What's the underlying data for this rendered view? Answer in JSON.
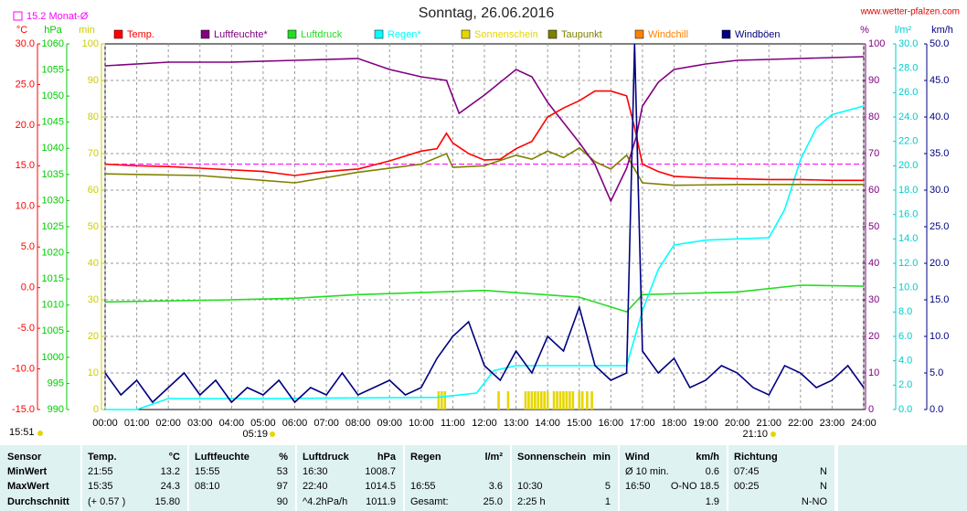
{
  "chart_data": {
    "type": "line",
    "title": "Sonntag, 26.06.2016",
    "source": "www.wetter-pfalzen.com",
    "updated": "15:51",
    "sunrise": "05:19",
    "sunset": "21:10",
    "monthly_mean": {
      "label": "15.2 Monat-Ø",
      "value": 15.2,
      "color": "#ff00ff"
    },
    "grid": true,
    "xlim": [
      0,
      24
    ],
    "xticks": [
      {
        "value": 0,
        "label": "00:00"
      },
      {
        "value": 1,
        "label": "01:00"
      },
      {
        "value": 2,
        "label": "02:00"
      },
      {
        "value": 3,
        "label": "03:00"
      },
      {
        "value": 4,
        "label": "04:00"
      },
      {
        "value": 5,
        "label": "05:00"
      },
      {
        "value": 6,
        "label": "06:00"
      },
      {
        "value": 7,
        "label": "07:00"
      },
      {
        "value": 8,
        "label": "08:00"
      },
      {
        "value": 9,
        "label": "09:00"
      },
      {
        "value": 10,
        "label": "10:00"
      },
      {
        "value": 11,
        "label": "11:00"
      },
      {
        "value": 12,
        "label": "12:00"
      },
      {
        "value": 13,
        "label": "13:00"
      },
      {
        "value": 14,
        "label": "14:00"
      },
      {
        "value": 15,
        "label": "15:00"
      },
      {
        "value": 16,
        "label": "16:00"
      },
      {
        "value": 17,
        "label": "17:00"
      },
      {
        "value": 18,
        "label": "18:00"
      },
      {
        "value": 19,
        "label": "19:00"
      },
      {
        "value": 20,
        "label": "20:00"
      },
      {
        "value": 21,
        "label": "21:00"
      },
      {
        "value": 22,
        "label": "22:00"
      },
      {
        "value": 23,
        "label": "23:00"
      },
      {
        "value": 24,
        "label": "24:00"
      }
    ],
    "axes": [
      {
        "unit": "°C",
        "color": "#ff0000",
        "side": "left",
        "ylim": [
          -15,
          30
        ],
        "yticks": [
          {
            "value": -15,
            "label": "-15.0"
          },
          {
            "value": -10,
            "label": "-10.0"
          },
          {
            "value": -5,
            "label": "-5.0"
          },
          {
            "value": 0,
            "label": "0.0"
          },
          {
            "value": 5,
            "label": "5.0"
          },
          {
            "value": 10,
            "label": "10.0"
          },
          {
            "value": 15,
            "label": "15.0"
          },
          {
            "value": 20,
            "label": "20.0"
          },
          {
            "value": 25,
            "label": "25.0"
          },
          {
            "value": 30,
            "label": "30.0"
          }
        ]
      },
      {
        "unit": "hPa",
        "color": "#00cc00",
        "side": "left",
        "ylim": [
          990,
          1060
        ],
        "yticks": [
          990,
          995,
          1000,
          1005,
          1010,
          1015,
          1020,
          1025,
          1030,
          1035,
          1040,
          1045,
          1050,
          1055,
          1060
        ]
      },
      {
        "unit": "min",
        "color": "#cccc00",
        "side": "left",
        "ylim": [
          0,
          100
        ],
        "yticks": [
          0,
          10,
          20,
          30,
          40,
          50,
          60,
          70,
          80,
          90,
          100
        ]
      },
      {
        "unit": "%",
        "color": "#800080",
        "side": "right",
        "ylim": [
          0,
          100
        ],
        "yticks": [
          0,
          10,
          20,
          30,
          40,
          50,
          60,
          70,
          80,
          90,
          100
        ]
      },
      {
        "unit": "l/m²",
        "color": "#00cccc",
        "side": "right",
        "ylim": [
          0,
          30
        ],
        "yticks": [
          {
            "value": 0,
            "label": "0.0"
          },
          {
            "value": 2,
            "label": "2.0"
          },
          {
            "value": 4,
            "label": "4.0"
          },
          {
            "value": 6,
            "label": "6.0"
          },
          {
            "value": 8,
            "label": "8.0"
          },
          {
            "value": 10,
            "label": "10.0"
          },
          {
            "value": 12,
            "label": "12.0"
          },
          {
            "value": 14,
            "label": "14.0"
          },
          {
            "value": 16,
            "label": "16.0"
          },
          {
            "value": 18,
            "label": "18.0"
          },
          {
            "value": 20,
            "label": "20.0"
          },
          {
            "value": 22,
            "label": "22.0"
          },
          {
            "value": 24,
            "label": "24.0"
          },
          {
            "value": 26,
            "label": "26.0"
          },
          {
            "value": 28,
            "label": "28.0"
          },
          {
            "value": 30,
            "label": "30.0"
          }
        ]
      },
      {
        "unit": "km/h",
        "color": "#000080",
        "side": "right",
        "ylim": [
          0,
          50
        ],
        "yticks": [
          {
            "value": 0,
            "label": "0.0"
          },
          {
            "value": 5,
            "label": "5.0"
          },
          {
            "value": 10,
            "label": "10.0"
          },
          {
            "value": 15,
            "label": "15.0"
          },
          {
            "value": 20,
            "label": "20.0"
          },
          {
            "value": 25,
            "label": "25.0"
          },
          {
            "value": 30,
            "label": "30.0"
          },
          {
            "value": 35,
            "label": "35.0"
          },
          {
            "value": 40,
            "label": "40.0"
          },
          {
            "value": 45,
            "label": "45.0"
          },
          {
            "value": 50,
            "label": "50.0"
          }
        ]
      }
    ],
    "series": [
      {
        "name": "Temp.",
        "color": "#ff0000",
        "axis": "°C",
        "type": "line",
        "x": [
          0,
          1,
          2,
          3,
          4,
          5,
          6,
          7,
          8,
          9,
          10,
          10.5,
          10.8,
          11,
          11.5,
          12,
          12.5,
          13,
          13.5,
          14,
          14.5,
          15,
          15.5,
          16,
          16.5,
          16.75,
          17,
          17.5,
          18,
          19,
          20,
          21,
          22,
          23,
          24
        ],
        "values": [
          15.2,
          15.0,
          14.9,
          14.7,
          14.5,
          14.3,
          13.8,
          14.3,
          14.6,
          15.6,
          16.8,
          17.1,
          19.0,
          17.8,
          16.5,
          15.7,
          15.8,
          17.1,
          18.0,
          21.0,
          22.1,
          23.0,
          24.2,
          24.2,
          23.6,
          19.7,
          15.2,
          14.3,
          13.7,
          13.5,
          13.4,
          13.3,
          13.3,
          13.2,
          13.2
        ]
      },
      {
        "name": "Luftfeuchte*",
        "color": "#800080",
        "axis": "%",
        "type": "line",
        "x": [
          0,
          2,
          4,
          6,
          8,
          9,
          10,
          10.8,
          11.2,
          12,
          13,
          13.5,
          14,
          15,
          15.5,
          16,
          16.5,
          16.8,
          17,
          17.5,
          18,
          19,
          20,
          22,
          24
        ],
        "values": [
          94,
          95,
          95,
          95.5,
          96,
          93,
          91,
          90,
          81,
          86,
          93,
          91,
          84,
          73,
          67,
          57,
          66,
          74.5,
          83,
          89.5,
          93,
          94.5,
          95.5,
          96,
          96.5
        ]
      },
      {
        "name": "Luftdruck",
        "color": "#22dd22",
        "axis": "hPa",
        "type": "line",
        "x": [
          0,
          4,
          6,
          8,
          12,
          15,
          16.5,
          17,
          20,
          22,
          24
        ],
        "values": [
          1010.6,
          1011.0,
          1011.3,
          1012.0,
          1012.8,
          1011.5,
          1008.7,
          1012.0,
          1012.5,
          1013.8,
          1013.6
        ]
      },
      {
        "name": "Regen*",
        "color": "#00ffff",
        "axis": "l/m²",
        "type": "line",
        "x": [
          0,
          1,
          2,
          5,
          10.5,
          11.75,
          12.3,
          13,
          16.5,
          17,
          17.5,
          18,
          19,
          21,
          21.5,
          22,
          22.5,
          23,
          24
        ],
        "values": [
          0,
          0,
          0.9,
          0.9,
          1.0,
          1.35,
          3.2,
          3.6,
          3.6,
          8.1,
          11.5,
          13.5,
          13.9,
          14.1,
          16.4,
          20.5,
          23.1,
          24.2,
          24.9
        ]
      },
      {
        "name": "Sonnenschein",
        "color": "#e6d600",
        "axis": "min",
        "type": "bar",
        "x": [
          10.55,
          10.65,
          10.75,
          12.45,
          12.75,
          13.3,
          13.4,
          13.5,
          13.6,
          13.7,
          13.8,
          13.9,
          14.0,
          14.2,
          14.3,
          14.4,
          14.5,
          14.6,
          14.7,
          14.8,
          15.0,
          15.1,
          15.25,
          15.4
        ],
        "values": [
          5,
          5,
          5,
          5,
          5,
          5,
          5,
          5,
          5,
          5,
          5,
          5,
          5,
          5,
          5,
          5,
          5,
          5,
          5,
          5,
          5,
          5,
          5,
          5
        ]
      },
      {
        "name": "Taupunkt",
        "color": "#808000",
        "axis": "°C",
        "type": "line",
        "x": [
          0,
          3,
          6,
          8,
          10,
          10.8,
          11,
          12,
          13,
          13.5,
          14,
          14.5,
          15,
          15.5,
          16,
          16.5,
          17,
          18,
          20,
          24
        ],
        "values": [
          14.0,
          13.8,
          12.9,
          14.2,
          15.2,
          16.5,
          14.8,
          15.0,
          16.3,
          15.8,
          16.8,
          16.0,
          17.2,
          15.5,
          14.6,
          16.3,
          12.9,
          12.6,
          12.7,
          12.7
        ]
      },
      {
        "name": "Windchill",
        "color": "#ff8000",
        "axis": "°C",
        "type": "line"
      },
      {
        "name": "Windböen",
        "color": "#000080",
        "axis": "km/h",
        "type": "line",
        "x": [
          0,
          0.5,
          1,
          1.5,
          2,
          2.5,
          3,
          3.5,
          4,
          4.5,
          5,
          5.5,
          6,
          6.5,
          7,
          7.5,
          8,
          8.5,
          9,
          9.5,
          10,
          10.5,
          11,
          11.5,
          12,
          12.5,
          13,
          13.5,
          14,
          14.5,
          15,
          15.5,
          16,
          16.5,
          16.75,
          17,
          17.5,
          18,
          18.5,
          19,
          19.5,
          20,
          20.5,
          21,
          21.5,
          22,
          22.5,
          23,
          23.5,
          24
        ],
        "values": [
          5,
          2,
          4,
          1,
          3,
          5,
          2,
          4,
          1,
          3,
          2,
          4,
          1,
          3,
          2,
          5,
          2,
          3,
          4,
          2,
          3,
          7,
          10,
          12,
          6,
          4,
          8,
          5,
          10,
          8,
          14,
          6,
          4,
          5,
          50,
          8,
          5,
          7,
          3,
          4,
          6,
          5,
          3,
          2,
          6,
          5,
          3,
          4,
          6,
          3
        ]
      }
    ]
  },
  "table": {
    "header": [
      "Sensor",
      "Temp.",
      "°C",
      "Luftfeuchte",
      "%",
      "Luftdruck",
      "hPa",
      "Regen",
      "l/m²",
      "Sonnenschein",
      "min",
      "Wind",
      "km/h",
      "Richtung",
      null
    ],
    "rows": [
      [
        "MinWert",
        "21:55",
        "13.2",
        "15:55",
        "53",
        "16:30",
        "1008.7",
        null,
        null,
        null,
        null,
        "Ø 10 min.",
        "0.6",
        "07:45",
        "N"
      ],
      [
        "MaxWert",
        "15:35",
        "24.3",
        "08:10",
        "97",
        "22:40",
        "1014.5",
        "16:55",
        "3.6",
        "10:30",
        "5",
        "16:50",
        "O-NO 18.5",
        "00:25",
        "N"
      ],
      [
        "Durchschnitt",
        "(+ 0.57 )",
        "15.80",
        null,
        "90",
        "^4.2hPa/h",
        "1011.9",
        "Gesamt:",
        "25.0",
        "2:25 h",
        "1",
        null,
        "1.9",
        null,
        "N-NO"
      ]
    ]
  }
}
